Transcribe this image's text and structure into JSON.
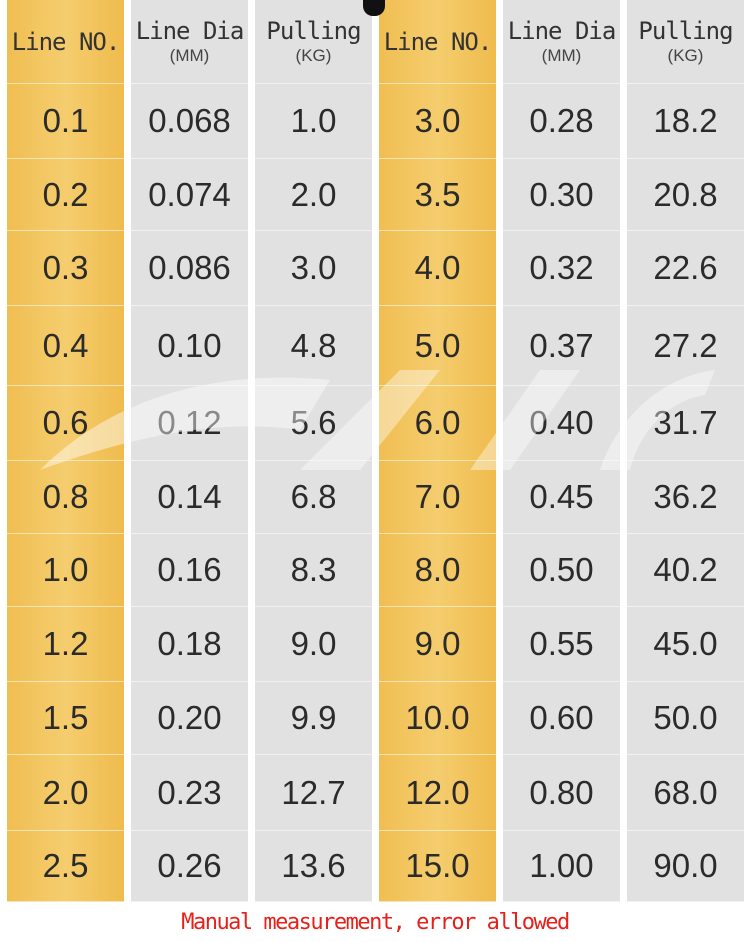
{
  "table": {
    "headers": [
      {
        "line1": "Line NO.",
        "line2": ""
      },
      {
        "line1": "Line Dia",
        "line2": "(MM)"
      },
      {
        "line1": "Pulling",
        "line2": "(KG)"
      },
      {
        "line1": "Line NO.",
        "line2": ""
      },
      {
        "line1": "Line Dia",
        "line2": "(MM)"
      },
      {
        "line1": "Pulling",
        "line2": "(KG)"
      }
    ],
    "rows": [
      [
        "0.1",
        "0.068",
        "1.0",
        "3.0",
        "0.28",
        "18.2"
      ],
      [
        "0.2",
        "0.074",
        "2.0",
        "3.5",
        "0.30",
        "20.8"
      ],
      [
        "0.3",
        "0.086",
        "3.0",
        "4.0",
        "0.32",
        "22.6"
      ],
      [
        "0.4",
        "0.10",
        "4.8",
        "5.0",
        "0.37",
        "27.2"
      ],
      [
        "0.6",
        "0.12",
        "5.6",
        "6.0",
        "0.40",
        "31.7"
      ],
      [
        "0.8",
        "0.14",
        "6.8",
        "7.0",
        "0.45",
        "36.2"
      ],
      [
        "1.0",
        "0.16",
        "8.3",
        "8.0",
        "0.50",
        "40.2"
      ],
      [
        "1.2",
        "0.18",
        "9.0",
        "9.0",
        "0.55",
        "45.0"
      ],
      [
        "1.5",
        "0.20",
        "9.9",
        "10.0",
        "0.60",
        "50.0"
      ],
      [
        "2.0",
        "0.23",
        "12.7",
        "12.0",
        "0.80",
        "68.0"
      ],
      [
        "2.5",
        "0.26",
        "13.6",
        "15.0",
        "1.00",
        "90.0"
      ]
    ]
  },
  "footer_note": "Manual measurement, error allowed",
  "colors": {
    "gold": "#f2c45e",
    "grey": "#e1e1e1",
    "note": "#e8201a"
  }
}
